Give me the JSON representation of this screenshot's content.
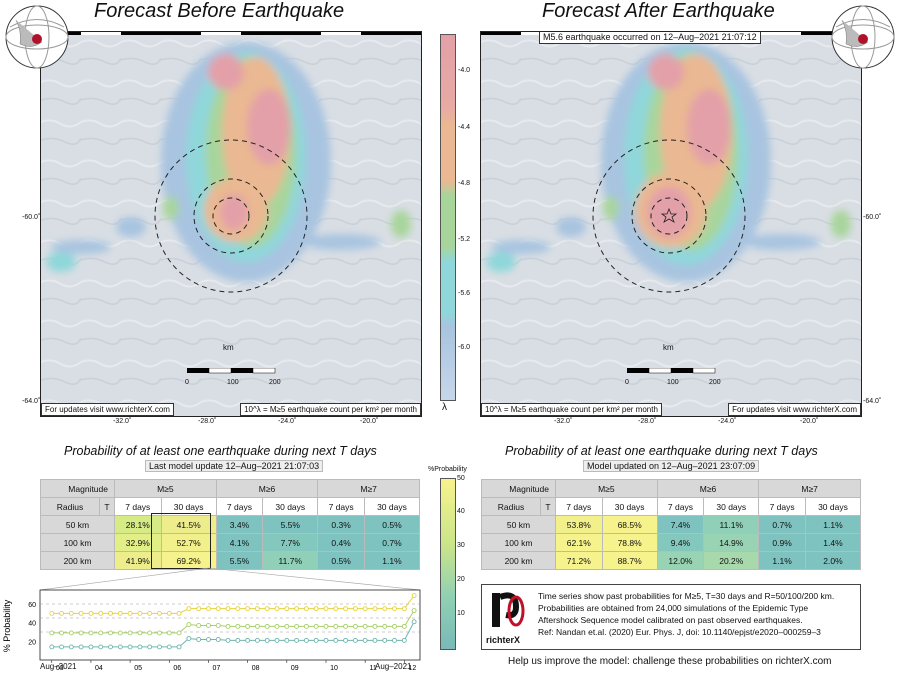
{
  "left_panel": {
    "title": "Forecast Before Earthquake",
    "note_left": "For updates visit www.richterX.com",
    "note_right": "10^λ = M≥5 earthquake count per km² per month",
    "scalebar": {
      "label": "km",
      "ticks": [
        "0",
        "100",
        "200"
      ]
    },
    "x_ticks": [
      "-32.0˚",
      "-28.0˚",
      "-24.0˚",
      "-20.0˚"
    ],
    "y_ticks": [
      "-60.0˚",
      "-64.0˚"
    ]
  },
  "right_panel": {
    "title": "Forecast After Earthquake",
    "event_label": "M5.6 earthquake occurred on 12–Aug–2021 21:07:12",
    "note_left": "10^λ = M≥5 earthquake count per km² per month",
    "note_right": "For updates visit www.richterX.com",
    "scalebar": {
      "label": "km",
      "ticks": [
        "0",
        "100",
        "200"
      ]
    },
    "x_ticks": [
      "-32.0˚",
      "-28.0˚",
      "-24.0˚",
      "-20.0˚"
    ],
    "y_ticks": [
      "-60.0˚",
      "-64.0˚"
    ]
  },
  "colorbar": {
    "ticks": [
      "-4.0",
      "-4.4",
      "-4.8",
      "-5.2",
      "-5.6",
      "-6.0"
    ],
    "label": "λ"
  },
  "prob_colorbar": {
    "label": "%Probability",
    "ticks": [
      "50",
      "40",
      "30",
      "20",
      "10"
    ]
  },
  "colors": {
    "rose": "#e3a0a8",
    "orange": "#eab892",
    "green": "#a8d59b",
    "cyan": "#8fd7da",
    "blue": "#a8c4e0",
    "table_teal": "#7ec3c0",
    "table_green": "#b4df8a",
    "table_yellow": "#f2f08a"
  },
  "left_table": {
    "title": "Probability of at least one earthquake during next T days",
    "update": "Last model update 12–Aug–2021 21:07:03",
    "header_magnitude": "Magnitude",
    "header_radius": "Radius",
    "header_t": "T",
    "mags": [
      "M≥5",
      "M≥6",
      "M≥7"
    ],
    "periods": [
      "7 days",
      "30 days",
      "7 days",
      "30 days",
      "7 days",
      "30 days"
    ],
    "rows": [
      {
        "radius": "50 km",
        "values": [
          "28.1%",
          "41.5%",
          "3.4%",
          "5.5%",
          "0.3%",
          "0.5%"
        ]
      },
      {
        "radius": "100 km",
        "values": [
          "32.9%",
          "52.7%",
          "4.1%",
          "7.7%",
          "0.4%",
          "0.7%"
        ]
      },
      {
        "radius": "200 km",
        "values": [
          "41.9%",
          "69.2%",
          "5.5%",
          "11.7%",
          "0.5%",
          "1.1%"
        ]
      }
    ]
  },
  "right_table": {
    "title": "Probability of at least one earthquake during next T days",
    "update": "Model updated on 12–Aug–2021 23:07:09",
    "header_magnitude": "Magnitude",
    "header_radius": "Radius",
    "header_t": "T",
    "mags": [
      "M≥5",
      "M≥6",
      "M≥7"
    ],
    "periods": [
      "7 days",
      "30 days",
      "7 days",
      "30 days",
      "7 days",
      "30 days"
    ],
    "rows": [
      {
        "radius": "50 km",
        "values": [
          "53.8%",
          "68.5%",
          "7.4%",
          "11.1%",
          "0.7%",
          "1.1%"
        ]
      },
      {
        "radius": "100 km",
        "values": [
          "62.1%",
          "78.8%",
          "9.4%",
          "14.9%",
          "0.9%",
          "1.4%"
        ]
      },
      {
        "radius": "200 km",
        "values": [
          "71.2%",
          "88.7%",
          "12.0%",
          "20.2%",
          "1.1%",
          "2.0%"
        ]
      }
    ]
  },
  "info": {
    "logo_text": "richterX",
    "line1": "Time series show past probabilities for M≥5, T=30 days and R=50/100/200 km.",
    "line2": "Probabilities are obtained from 24,000 simulations of the Epidemic Type",
    "line3": "Aftershock Sequence model calibrated on past observed earthquakes.",
    "line4": "Ref: Nandan et.al. (2020) Eur. Phys. J, doi: 10.1140/epjst/e2020–000259–3",
    "footer": "Help us improve the model: challenge these probabilities on richterX.com"
  },
  "chart_data": {
    "type": "line",
    "ylabel": "% Probability",
    "ylim": [
      0,
      75
    ],
    "y_ticks": [
      20,
      40,
      60
    ],
    "x_ticks": [
      "03",
      "04",
      "05",
      "06",
      "07",
      "08",
      "09",
      "10",
      "11",
      "12"
    ],
    "x_start_label": "Aug–2021",
    "x_end_label": "Aug–2021",
    "x": [
      3,
      3.25,
      3.5,
      3.75,
      4,
      4.25,
      4.5,
      4.75,
      5,
      5.25,
      5.5,
      5.75,
      6,
      6.25,
      6.5,
      6.75,
      7,
      7.25,
      7.5,
      7.75,
      8,
      8.25,
      8.5,
      8.75,
      9,
      9.25,
      9.5,
      9.75,
      10,
      10.25,
      10.5,
      10.75,
      11,
      11.25,
      11.5,
      11.75,
      12,
      12.25
    ],
    "series": [
      {
        "color": "#e8d23a",
        "values": [
          50,
          50,
          50,
          50,
          50,
          50,
          50,
          50,
          50,
          50,
          50,
          50,
          50,
          50,
          55,
          55,
          55,
          55,
          55,
          55,
          55,
          55,
          55,
          55,
          55,
          55,
          55,
          55,
          55,
          55,
          55,
          55,
          55,
          55,
          55,
          55,
          55,
          69
        ]
      },
      {
        "color": "#a7cf6a",
        "values": [
          29,
          29,
          29,
          29,
          29,
          29,
          29,
          29,
          29,
          29,
          29,
          29,
          29,
          29,
          38,
          37,
          37,
          37,
          36,
          36,
          36,
          36,
          36,
          36,
          36,
          36,
          36,
          36,
          36,
          36,
          36,
          36,
          36,
          36,
          36,
          36,
          36,
          53
        ]
      },
      {
        "color": "#6fb5ac",
        "values": [
          14,
          14,
          14,
          14,
          14,
          14,
          14,
          14,
          14,
          14,
          14,
          14,
          14,
          14,
          23,
          22,
          22,
          22,
          21,
          21,
          21,
          21,
          21,
          21,
          21,
          21,
          21,
          21,
          21,
          21,
          21,
          21,
          21,
          21,
          21,
          21,
          21,
          41
        ]
      }
    ],
    "reference_lines": [
      60,
      45,
      30
    ]
  }
}
